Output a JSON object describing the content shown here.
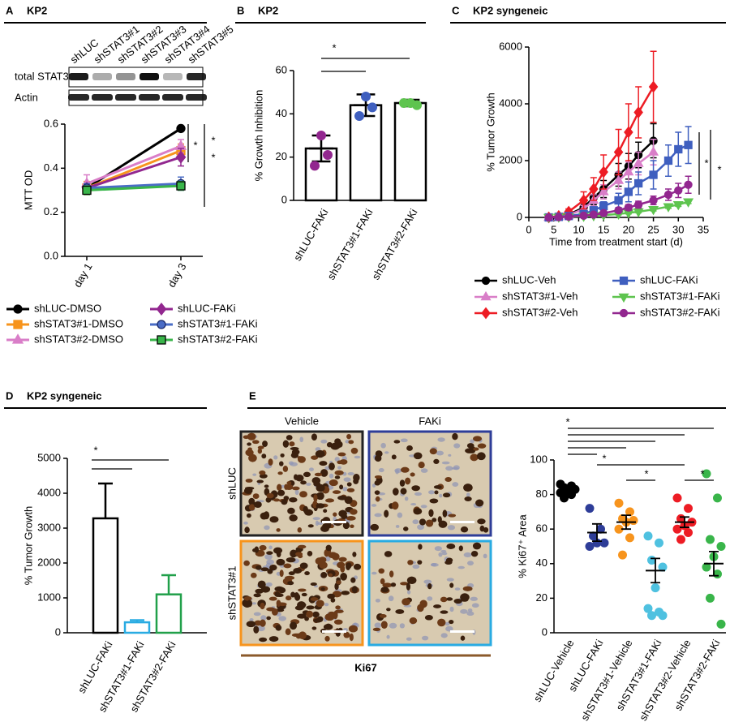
{
  "chart_data": [
    {
      "type": "blot",
      "panel": "A",
      "title": "KP2",
      "lanes": [
        "shLUC",
        "shSTAT3#1",
        "shSTAT3#2",
        "shSTAT3#3",
        "shSTAT3#4",
        "shSTAT3#5"
      ],
      "rows": [
        "total STAT3",
        "Actin"
      ]
    },
    {
      "type": "line",
      "ylabel": "MTT OD",
      "categories": [
        "day 1",
        "day 3"
      ],
      "ylim": [
        0,
        0.6
      ],
      "yticks": [
        {
          "value": 0,
          "label": "0.0"
        },
        0.2,
        0.4,
        0.6
      ],
      "series": [
        {
          "name": "shLUC-DMSO",
          "color": "#000000",
          "marker": "circle",
          "values": [
            0.31,
            0.58
          ],
          "errors": [
            0.02,
            0.01
          ]
        },
        {
          "name": "shSTAT3#1-DMSO",
          "color": "#f7941d",
          "marker": "square",
          "values": [
            0.31,
            0.48
          ],
          "errors": [
            0.03,
            0.03
          ]
        },
        {
          "name": "shSTAT3#2-DMSO",
          "color": "#d97ec8",
          "marker": "triangle",
          "values": [
            0.33,
            0.5
          ],
          "errors": [
            0.04,
            0.03
          ]
        },
        {
          "name": "shLUC-FAKi",
          "color": "#92278f",
          "marker": "diamond",
          "values": [
            0.31,
            0.45
          ],
          "errors": [
            0.02,
            0.04
          ]
        },
        {
          "name": "shSTAT3#1-FAKi",
          "color": "#4a6cc6",
          "edgecolor": "#1b2a6b",
          "marker": "circle",
          "values": [
            0.31,
            0.33
          ],
          "errors": [
            0.02,
            0.03
          ]
        },
        {
          "name": "shSTAT3#2-FAKi",
          "color": "#39b54a",
          "edgecolor": "#000000",
          "marker": "square",
          "values": [
            0.3,
            0.32
          ],
          "errors": [
            0.02,
            0.02
          ]
        }
      ],
      "annotations": [
        "*",
        "*",
        "*"
      ]
    },
    {
      "type": "bar",
      "panel": "B",
      "title": "KP2",
      "ylabel": "% Growth Inhibition",
      "categories": [
        "shLUC-FAKi",
        "shSTAT3#1-FAKi",
        "shSTAT3#2-FAKi"
      ],
      "values": [
        24,
        44,
        45
      ],
      "errors": [
        6,
        5,
        1.5
      ],
      "error_style": "both",
      "color": "#000000",
      "points": [
        [
          30,
          21,
          16
        ],
        [
          48,
          43,
          39
        ],
        [
          45,
          44,
          45
        ]
      ],
      "point_colors": [
        "#92278f",
        "#3f5fbf",
        "#5ec44f"
      ],
      "ylim": [
        0,
        60
      ],
      "yticks": [
        0,
        20,
        40,
        60
      ],
      "annotations": [
        "*"
      ]
    },
    {
      "type": "line",
      "panel": "C",
      "title": "KP2 syngeneic",
      "ylabel": "% Tumor Growth",
      "xlabel": "Time from treatment start (d)",
      "x": [
        4,
        6,
        8,
        11,
        13,
        15,
        18,
        20,
        22,
        25,
        28,
        30,
        32
      ],
      "xlim": [
        0,
        35
      ],
      "xticks": [
        0,
        5,
        10,
        15,
        20,
        25,
        30,
        35
      ],
      "ylim": [
        0,
        6000
      ],
      "yticks": [
        0,
        2000,
        4000,
        6000
      ],
      "series": [
        {
          "name": "shLUC-Veh",
          "color": "#000000",
          "marker": "circle",
          "values": [
            0,
            30,
            100,
            350,
            700,
            1000,
            1500,
            1800,
            2200,
            2700,
            null,
            null,
            null
          ],
          "errors": [
            0,
            20,
            60,
            150,
            250,
            300,
            400,
            450,
            450,
            600,
            null,
            null,
            null
          ]
        },
        {
          "name": "shSTAT3#1-Veh",
          "color": "#d97ec8",
          "marker": "triangle",
          "values": [
            0,
            20,
            80,
            300,
            600,
            900,
            1300,
            1600,
            1900,
            2300,
            null,
            null,
            null
          ],
          "errors": [
            0,
            15,
            50,
            120,
            200,
            250,
            300,
            350,
            400,
            450,
            null,
            null,
            null
          ]
        },
        {
          "name": "shSTAT3#2-Veh",
          "color": "#ed1c24",
          "marker": "diamond",
          "values": [
            0,
            50,
            200,
            600,
            1000,
            1600,
            2300,
            3000,
            3700,
            4600,
            null,
            null,
            null
          ],
          "errors": [
            0,
            40,
            100,
            300,
            400,
            600,
            800,
            1000,
            900,
            1250,
            null,
            null,
            null
          ]
        },
        {
          "name": "shLUC-FAKi",
          "color": "#3f5fbf",
          "marker": "square",
          "values": [
            0,
            20,
            50,
            120,
            250,
            400,
            600,
            900,
            1200,
            1500,
            2000,
            2400,
            2550
          ],
          "errors": [
            0,
            10,
            30,
            60,
            100,
            150,
            250,
            350,
            400,
            500,
            550,
            600,
            650
          ]
        },
        {
          "name": "shSTAT3#1-FAKi",
          "color": "#5ec44f",
          "marker": "triangle-down",
          "values": [
            0,
            10,
            20,
            40,
            60,
            80,
            120,
            160,
            200,
            280,
            380,
            450,
            550
          ],
          "errors": [
            0,
            5,
            10,
            20,
            20,
            30,
            30,
            40,
            40,
            50,
            60,
            60,
            60
          ]
        },
        {
          "name": "shSTAT3#2-FAKi",
          "color": "#92278f",
          "marker": "circle",
          "values": [
            0,
            10,
            30,
            60,
            100,
            150,
            250,
            350,
            450,
            600,
            800,
            950,
            1150
          ],
          "errors": [
            0,
            5,
            15,
            30,
            40,
            60,
            80,
            100,
            120,
            150,
            200,
            250,
            300
          ]
        }
      ],
      "annotations": [
        "*",
        "*"
      ]
    },
    {
      "type": "bar",
      "panel": "D",
      "title": "KP2 syngeneic",
      "ylabel": "% Tumor Growth",
      "categories": [
        "shLUC-FAKi",
        "shSTAT3#1-FAKi",
        "shSTAT3#2-FAKi"
      ],
      "values": [
        3280,
        300,
        1100
      ],
      "errors": [
        1000,
        60,
        550
      ],
      "error_style": "upper",
      "colors": [
        "#000000",
        "#29abe2",
        "#21a04a"
      ],
      "ylim": [
        0,
        5000
      ],
      "yticks": [
        0,
        1000,
        2000,
        3000,
        4000,
        5000
      ],
      "annotations": [
        "*"
      ]
    },
    {
      "type": "micrograph",
      "panel": "E",
      "columns": [
        "Vehicle",
        "FAKi"
      ],
      "rows": [
        "shLUC",
        "shSTAT3#1"
      ],
      "stain": "Ki67"
    },
    {
      "type": "strip",
      "ylabel": "% Ki67⁺ Area",
      "categories": [
        "shLUC-Vehicle",
        "shLUC-FAKi",
        "shSTAT3#1-Vehicle",
        "shSTAT3#1-FAKi",
        "shSTAT3#2-Vehicle",
        "shSTAT3#2-FAKi"
      ],
      "colors": [
        "#000000",
        "#2e3d98",
        "#f7941d",
        "#4fc1e0",
        "#ed1c24",
        "#39b54a"
      ],
      "points": [
        [
          86,
          85,
          84,
          83,
          82,
          81,
          80,
          78
        ],
        [
          72,
          60,
          56,
          52,
          52,
          50
        ],
        [
          75,
          70,
          66,
          65,
          64,
          60,
          55,
          45
        ],
        [
          56,
          52,
          42,
          38,
          26,
          14,
          12,
          10,
          10
        ],
        [
          78,
          72,
          66,
          64,
          62,
          60,
          58,
          54
        ],
        [
          92,
          78,
          54,
          50,
          44,
          38,
          34,
          20,
          5
        ]
      ],
      "means": [
        82,
        58,
        64,
        36,
        64,
        40
      ],
      "errors": [
        2,
        5,
        4,
        7,
        3,
        7
      ],
      "ylim": [
        0,
        100
      ],
      "yticks": [
        0,
        20,
        40,
        60,
        80,
        100
      ],
      "annotations": [
        "*",
        "*",
        "*",
        "*"
      ]
    }
  ]
}
